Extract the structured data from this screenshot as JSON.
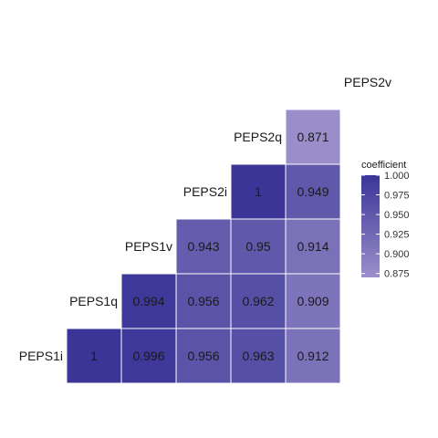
{
  "chart_data": {
    "type": "heatmap",
    "variables": [
      "PEPS1i",
      "PEPS1q",
      "PEPS1v",
      "PEPS2i",
      "PEPS2q",
      "PEPS2v"
    ],
    "rows": [
      {
        "label": "PEPS1i",
        "values": [
          1,
          0.996,
          0.956,
          0.963,
          0.912
        ]
      },
      {
        "label": "PEPS1q",
        "values": [
          0.994,
          0.956,
          0.962,
          0.909
        ]
      },
      {
        "label": "PEPS1v",
        "values": [
          0.943,
          0.95,
          0.914
        ]
      },
      {
        "label": "PEPS2i",
        "values": [
          1,
          0.949
        ]
      },
      {
        "label": "PEPS2q",
        "values": [
          0.871
        ]
      },
      {
        "label": "PEPS2v",
        "values": []
      }
    ],
    "value_labels": {
      "PEPS1i": [
        "1",
        "0.996",
        "0.956",
        "0.963",
        "0.912"
      ],
      "PEPS1q": [
        "0.994",
        "0.956",
        "0.962",
        "0.909"
      ],
      "PEPS1v": [
        "0.943",
        "0.95",
        "0.914"
      ],
      "PEPS2i": [
        "1",
        "0.949"
      ],
      "PEPS2q": [
        "0.871"
      ],
      "PEPS2v": []
    },
    "legend": {
      "title": "coefficient",
      "position": "right",
      "range": [
        0.87,
        1.0
      ],
      "ticks": [
        1.0,
        0.975,
        0.95,
        0.925,
        0.9,
        0.875
      ],
      "tick_labels": [
        "1.000",
        "0.975",
        "0.950",
        "0.925",
        "0.900",
        "0.875"
      ]
    },
    "colors": {
      "low": "#9b8fca",
      "high": "#3a3597",
      "text": "#1a1a1a",
      "grid": "#ffffff"
    }
  }
}
